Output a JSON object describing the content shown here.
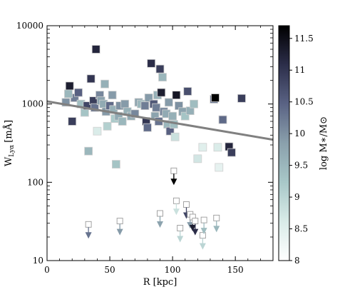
{
  "chart_data": {
    "type": "scatter",
    "title": "",
    "xlabel": "R [kpc]",
    "ylabel_main": "W",
    "ylabel_sub": "Lyα",
    "ylabel_unit": "[mÅ]",
    "colorbar_label": "log M∗/M⊙",
    "xlim": [
      0,
      180
    ],
    "ylim": [
      10,
      10000
    ],
    "yscale": "log",
    "grid": false,
    "x_ticks": [
      0,
      50,
      100,
      150
    ],
    "x_tick_labels": [
      "0",
      "50",
      "100",
      "150"
    ],
    "y_ticks": [
      10,
      100,
      1000,
      10000
    ],
    "y_tick_labels": [
      "10",
      "100",
      "1000",
      "10000"
    ],
    "colorbar_range": [
      8,
      11.7
    ],
    "colorbar_ticks": [
      8,
      8.5,
      9,
      9.5,
      10,
      10.5,
      11,
      11.5
    ],
    "colorbar_tick_labels": [
      "8",
      "8.5",
      "9",
      "9.5",
      "10",
      "10.5",
      "11",
      "11.5"
    ],
    "colormap": [
      "#ffffff",
      "#d9ebe8",
      "#a8c8c8",
      "#8aa0ac",
      "#5a6384",
      "#2c2e4a",
      "#000000"
    ],
    "fit_line": {
      "x": [
        0,
        180
      ],
      "y": [
        1080,
        350
      ],
      "color": "#808080"
    },
    "detections": [
      {
        "x": 18,
        "y": 1700,
        "logm": 11.3
      },
      {
        "x": 20,
        "y": 600,
        "logm": 10.9
      },
      {
        "x": 22,
        "y": 1200,
        "logm": 10.2
      },
      {
        "x": 15,
        "y": 1050,
        "logm": 10.0
      },
      {
        "x": 17,
        "y": 1350,
        "logm": 9.5
      },
      {
        "x": 25,
        "y": 1400,
        "logm": 10.5
      },
      {
        "x": 27,
        "y": 1000,
        "logm": 9.4
      },
      {
        "x": 30,
        "y": 780,
        "logm": 9.3
      },
      {
        "x": 32,
        "y": 950,
        "logm": 10.8
      },
      {
        "x": 33,
        "y": 250,
        "logm": 9.5
      },
      {
        "x": 35,
        "y": 2100,
        "logm": 11.0
      },
      {
        "x": 37,
        "y": 1100,
        "logm": 10.9
      },
      {
        "x": 38,
        "y": 900,
        "logm": 10.3
      },
      {
        "x": 39,
        "y": 5000,
        "logm": 11.2
      },
      {
        "x": 40,
        "y": 450,
        "logm": 8.6
      },
      {
        "x": 42,
        "y": 1300,
        "logm": 10.1
      },
      {
        "x": 43,
        "y": 1100,
        "logm": 9.8
      },
      {
        "x": 45,
        "y": 1000,
        "logm": 9.7
      },
      {
        "x": 46,
        "y": 1800,
        "logm": 9.6
      },
      {
        "x": 47,
        "y": 800,
        "logm": 9.9
      },
      {
        "x": 48,
        "y": 520,
        "logm": 9.1
      },
      {
        "x": 50,
        "y": 950,
        "logm": 10.4
      },
      {
        "x": 52,
        "y": 1300,
        "logm": 9.9
      },
      {
        "x": 53,
        "y": 850,
        "logm": 9.6
      },
      {
        "x": 54,
        "y": 650,
        "logm": 9.2
      },
      {
        "x": 55,
        "y": 170,
        "logm": 9.3
      },
      {
        "x": 57,
        "y": 700,
        "logm": 9.7
      },
      {
        "x": 58,
        "y": 950,
        "logm": 10.0
      },
      {
        "x": 60,
        "y": 600,
        "logm": 9.5
      },
      {
        "x": 62,
        "y": 1000,
        "logm": 9.9
      },
      {
        "x": 64,
        "y": 800,
        "logm": 9.6
      },
      {
        "x": 67,
        "y": 700,
        "logm": 9.7
      },
      {
        "x": 70,
        "y": 750,
        "logm": 10.1
      },
      {
        "x": 73,
        "y": 1050,
        "logm": 9.8
      },
      {
        "x": 75,
        "y": 1000,
        "logm": 9.5
      },
      {
        "x": 78,
        "y": 950,
        "logm": 10.2
      },
      {
        "x": 79,
        "y": 600,
        "logm": 11.0
      },
      {
        "x": 80,
        "y": 500,
        "logm": 10.4
      },
      {
        "x": 81,
        "y": 1200,
        "logm": 9.9
      },
      {
        "x": 83,
        "y": 3300,
        "logm": 11.1
      },
      {
        "x": 85,
        "y": 1000,
        "logm": 10.6
      },
      {
        "x": 86,
        "y": 700,
        "logm": 9.8
      },
      {
        "x": 87,
        "y": 900,
        "logm": 10.2
      },
      {
        "x": 88,
        "y": 1300,
        "logm": 9.6
      },
      {
        "x": 89,
        "y": 600,
        "logm": 10.3
      },
      {
        "x": 90,
        "y": 2800,
        "logm": 10.9
      },
      {
        "x": 91,
        "y": 1400,
        "logm": 11.3
      },
      {
        "x": 92,
        "y": 2200,
        "logm": 9.5
      },
      {
        "x": 93,
        "y": 800,
        "logm": 10.1
      },
      {
        "x": 95,
        "y": 750,
        "logm": 9.7
      },
      {
        "x": 96,
        "y": 550,
        "logm": 9.5
      },
      {
        "x": 97,
        "y": 1050,
        "logm": 9.9
      },
      {
        "x": 98,
        "y": 450,
        "logm": 10.5
      },
      {
        "x": 100,
        "y": 700,
        "logm": 9.6
      },
      {
        "x": 101,
        "y": 550,
        "logm": 9.4
      },
      {
        "x": 102,
        "y": 380,
        "logm": 8.8
      },
      {
        "x": 103,
        "y": 1300,
        "logm": 11.4
      },
      {
        "x": 105,
        "y": 950,
        "logm": 10.0
      },
      {
        "x": 108,
        "y": 800,
        "logm": 9.8
      },
      {
        "x": 110,
        "y": 700,
        "logm": 9.3
      },
      {
        "x": 112,
        "y": 1450,
        "logm": 10.7
      },
      {
        "x": 114,
        "y": 820,
        "logm": 9.6
      },
      {
        "x": 117,
        "y": 1000,
        "logm": 9.4
      },
      {
        "x": 120,
        "y": 200,
        "logm": 8.7
      },
      {
        "x": 124,
        "y": 280,
        "logm": 8.5
      },
      {
        "x": 133,
        "y": 1150,
        "logm": 10.3
      },
      {
        "x": 134,
        "y": 1200,
        "logm": 11.7
      },
      {
        "x": 136,
        "y": 280,
        "logm": 8.6
      },
      {
        "x": 137,
        "y": 155,
        "logm": 8.4
      },
      {
        "x": 140,
        "y": 630,
        "logm": 10.4
      },
      {
        "x": 145,
        "y": 285,
        "logm": 11.2
      },
      {
        "x": 147,
        "y": 240,
        "logm": 10.9
      },
      {
        "x": 155,
        "y": 1180,
        "logm": 10.9
      }
    ],
    "upper_limits": [
      {
        "x": 33,
        "y": 29,
        "logm": 10.3
      },
      {
        "x": 58,
        "y": 32,
        "logm": 9.9
      },
      {
        "x": 90,
        "y": 40,
        "logm": 9.8
      },
      {
        "x": 101,
        "y": 140,
        "logm": 11.7
      },
      {
        "x": 103,
        "y": 58,
        "logm": 8.8
      },
      {
        "x": 106,
        "y": 26,
        "logm": 9.0
      },
      {
        "x": 111,
        "y": 52,
        "logm": 10.8
      },
      {
        "x": 114,
        "y": 39,
        "logm": 9.9
      },
      {
        "x": 116,
        "y": 36,
        "logm": 11.3
      },
      {
        "x": 118,
        "y": 32,
        "logm": 11.1
      },
      {
        "x": 124,
        "y": 21,
        "logm": 9.0
      },
      {
        "x": 125,
        "y": 33,
        "logm": 9.4
      },
      {
        "x": 135,
        "y": 35,
        "logm": 9.5
      }
    ]
  }
}
